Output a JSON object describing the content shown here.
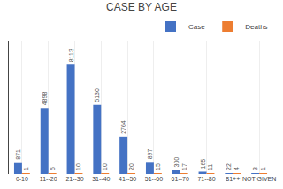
{
  "chart_data": {
    "type": "bar",
    "title": "CASE BY AGE",
    "categories": [
      "0-10",
      "11--20",
      "21--30",
      "31--40",
      "41--50",
      "51--60",
      "61--70",
      "71--80",
      "81++",
      "NOT GIVEN"
    ],
    "series": [
      {
        "name": "Case",
        "color": "#4472C4",
        "values": [
          871,
          4898,
          8113,
          5130,
          2764,
          897,
          300,
          165,
          22,
          3
        ]
      },
      {
        "name": "Deaths",
        "color": "#ED7D31",
        "values": [
          1,
          5,
          10,
          10,
          20,
          15,
          17,
          11,
          4,
          1
        ]
      }
    ],
    "ylim": [
      0,
      9897.86
    ],
    "grid": "x",
    "legend": "upper right",
    "data_labels": true,
    "tick_labels": "x"
  }
}
